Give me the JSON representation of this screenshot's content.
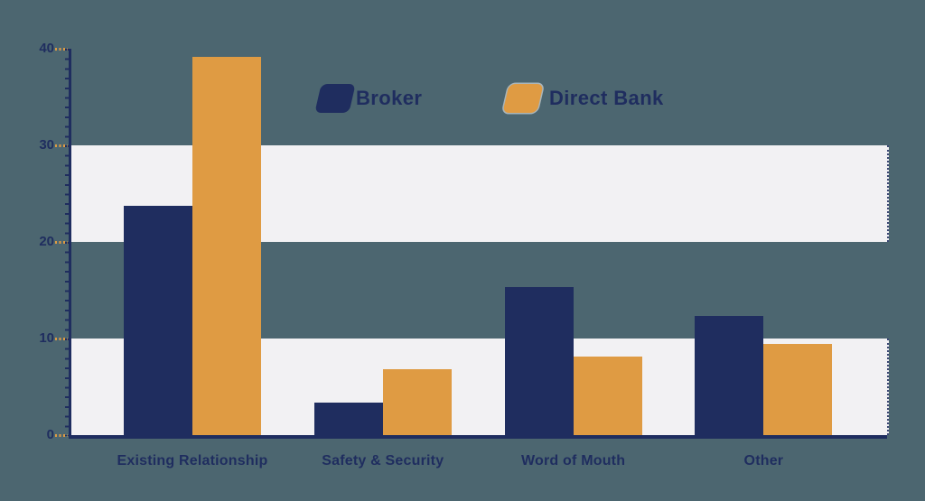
{
  "chart_data": {
    "type": "bar",
    "title": "",
    "xlabel": "",
    "ylabel": "",
    "categories": [
      "Existing Relationship",
      "Safety & Security",
      "Word of Mouth",
      "Other"
    ],
    "series": [
      {
        "name": "Broker",
        "color": "#1f2d5f",
        "values": [
          23.7,
          3.4,
          15.3,
          12.3
        ]
      },
      {
        "name": "Direct Bank",
        "color": "#df9b43",
        "values": [
          39.2,
          6.8,
          8.1,
          9.4
        ]
      }
    ],
    "ylim": [
      0,
      40
    ],
    "yticks": [
      0,
      10,
      20,
      30,
      40
    ],
    "legend_position": "top-center",
    "grid": "alternating horizontal bands shaded at 0-10 and 20-30"
  },
  "colors": {
    "background": "#4c6670",
    "band": "#f2f1f3",
    "axis": "#1f2d5f",
    "major_tick": "#df9b43"
  }
}
